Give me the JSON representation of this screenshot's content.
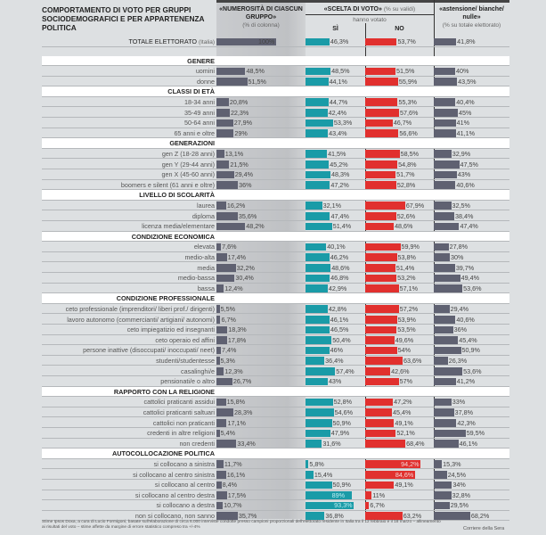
{
  "title": "COMPORTAMENTO DI VOTO PER GRUPPI SOCIODEMOGRAFICI E PER APPARTENENZA POLITICA",
  "headers": {
    "num": "«NUMEROSITÀ DI CIASCUN GRUPPO»",
    "num_sub": "(% di colonna)",
    "scelta": "«SCELTA DI VOTO»",
    "scelta_sub": "(% su validi)",
    "votato": "hanno votato",
    "si": "SÌ",
    "no": "NO",
    "ast": "«astensione/ bianche/ nulle»",
    "ast_sub": "(% su totale elettorato)"
  },
  "colors": {
    "group": "#5f6171",
    "si": "#1a9ba7",
    "no": "#e1302e",
    "astensione": "#5f6171"
  },
  "chart_data": {
    "type": "bar",
    "columns": [
      "numerosità di ciascun gruppo (% di colonna)",
      "sì (% su validi)",
      "no (% su validi)",
      "astensione/bianche/nulle (% su totale elettorato)"
    ],
    "total": {
      "label": "TOTALE ELETTORATO",
      "label_sub": "(Italia)",
      "values": [
        100,
        46.3,
        53.7,
        41.8
      ],
      "texts": [
        "100%",
        "46,3%",
        "53,7%",
        "41,8%"
      ]
    },
    "sections": [
      {
        "title": "GENERE",
        "rows": [
          [
            "uomini",
            48.5,
            48.5,
            51.5,
            40
          ],
          [
            "donne",
            51.5,
            44.1,
            55.9,
            43.5
          ]
        ]
      },
      {
        "title": "CLASSI DI ETÀ",
        "rows": [
          [
            "18-34 anni",
            20.8,
            44.7,
            55.3,
            40.4
          ],
          [
            "35-49 anni",
            22.3,
            42.4,
            57.6,
            45
          ],
          [
            "50-64 anni",
            27.9,
            53.3,
            46.7,
            41
          ],
          [
            "65 anni e oltre",
            29,
            43.4,
            56.6,
            41.1
          ]
        ]
      },
      {
        "title": "GENERAZIONI",
        "rows": [
          [
            "gen Z (18-28 anni)",
            13.1,
            41.5,
            58.5,
            32.9
          ],
          [
            "gen Y (29-44 anni)",
            21.5,
            45.2,
            54.8,
            47.5
          ],
          [
            "gen X (45-60 anni)",
            29.4,
            48.3,
            51.7,
            43
          ],
          [
            "boomers e silent (61 anni e oltre)",
            36,
            47.2,
            52.8,
            40.6
          ]
        ]
      },
      {
        "title": "LIVELLO DI SCOLARITÀ",
        "rows": [
          [
            "laurea",
            16.2,
            32.1,
            67.9,
            32.5
          ],
          [
            "diploma",
            35.6,
            47.4,
            52.6,
            38.4
          ],
          [
            "licenza media/elementare",
            48.2,
            51.4,
            48.6,
            47.4
          ]
        ]
      },
      {
        "title": "CONDIZIONE ECONOMICA",
        "rows": [
          [
            "elevata",
            7.6,
            40.1,
            59.9,
            27.8
          ],
          [
            "medio-alta",
            17.4,
            46.2,
            53.8,
            30
          ],
          [
            "media",
            32.2,
            48.6,
            51.4,
            39.7
          ],
          [
            "medio-bassa",
            30.4,
            46.8,
            53.2,
            49.4
          ],
          [
            "bassa",
            12.4,
            42.9,
            57.1,
            53.6
          ]
        ]
      },
      {
        "title": "CONDIZIONE PROFESSIONALE",
        "rows": [
          [
            "ceto professionale (imprenditori/ liberi prof./ dirigenti)",
            5.5,
            42.8,
            57.2,
            29.4
          ],
          [
            "lavoro autonomo (commercianti/ artigiani/ autonomi)",
            6.7,
            46.1,
            53.9,
            40.6
          ],
          [
            "ceto impiegatizio ed insegnanti",
            18.3,
            46.5,
            53.5,
            36
          ],
          [
            "ceto operaio ed affini",
            17.8,
            50.4,
            49.6,
            45.4
          ],
          [
            "persone inattive (disoccupati/ inoccupati/ neet)",
            7.4,
            46,
            54,
            50.9
          ],
          [
            "studenti/studentesse",
            5.3,
            36.4,
            63.6,
            26.3
          ],
          [
            "casalinghi/e",
            12.3,
            57.4,
            42.6,
            53.6
          ],
          [
            "pensionati/e o altro",
            26.7,
            43,
            57,
            41.2
          ]
        ]
      },
      {
        "title": "RAPPORTO CON LA RELIGIONE",
        "rows": [
          [
            "cattolici praticanti assidui",
            15.8,
            52.8,
            47.2,
            33
          ],
          [
            "cattolici praticanti saltuari",
            28.3,
            54.6,
            45.4,
            37.8
          ],
          [
            "cattolici non praticanti",
            17.1,
            50.9,
            49.1,
            42.3
          ],
          [
            "credenti in altre religioni",
            5.4,
            47.9,
            52.1,
            59.5
          ],
          [
            "non credenti",
            33.4,
            31.6,
            68.4,
            46.1
          ]
        ]
      },
      {
        "title": "AUTOCOLLOCAZIONE POLITICA",
        "rows": [
          [
            "si collocano a sinistra",
            11.7,
            5.8,
            94.2,
            15.3
          ],
          [
            "si collocano al centro sinistra",
            16.1,
            15.4,
            84.6,
            24.5
          ],
          [
            "si collocano al centro",
            8.4,
            50.9,
            49.1,
            34
          ],
          [
            "si collocano al centro destra",
            17.5,
            89,
            11,
            32.8
          ],
          [
            "si collocano a destra",
            10.7,
            93.3,
            6.7,
            29.5
          ],
          [
            "non si collocano, non sanno",
            35.7,
            36.8,
            63.2,
            68.2
          ]
        ]
      }
    ]
  },
  "footer": "Stime Ipsos Doxa, a cura di Lucio Formigoni, basate sull'elaborazione di circa 6.000 interviste condotte presso campioni proporzionali dell'elettorato residente in Italia tra il 12 febbraio e il 18 marzo – allineamento ai risultati del voto – stime affette da margine di errore statistico compreso tra +/-4%",
  "source": "Corriere della Sera"
}
